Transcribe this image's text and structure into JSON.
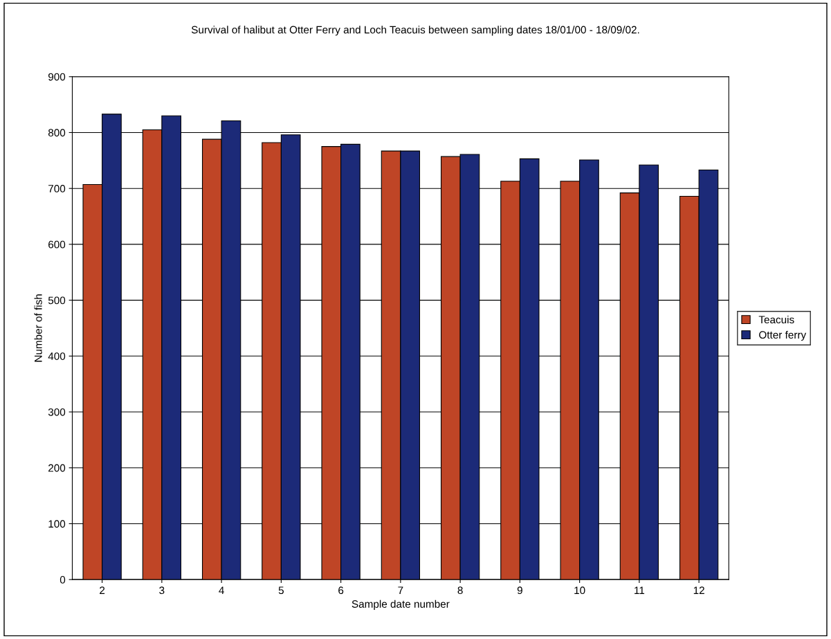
{
  "chart_data": {
    "type": "bar",
    "title": "Survival of halibut at Otter Ferry and Loch Teacuis between sampling dates 18/01/00 - 18/09/02.",
    "xlabel": "Sample date number",
    "ylabel": "Number of fish",
    "categories": [
      "2",
      "3",
      "4",
      "5",
      "6",
      "7",
      "8",
      "9",
      "10",
      "11",
      "12"
    ],
    "series": [
      {
        "name": "Teacuis",
        "color": "#bf4526",
        "values": [
          707,
          805,
          788,
          782,
          775,
          767,
          757,
          713,
          713,
          692,
          686
        ]
      },
      {
        "name": "Otter ferry",
        "color": "#1c2a78",
        "values": [
          833,
          830,
          821,
          796,
          779,
          767,
          761,
          753,
          751,
          742,
          733
        ]
      }
    ],
    "ylim": [
      0,
      900
    ],
    "yticks": [
      0,
      100,
      200,
      300,
      400,
      500,
      600,
      700,
      800,
      900
    ],
    "grid": "y",
    "legend": "right"
  }
}
